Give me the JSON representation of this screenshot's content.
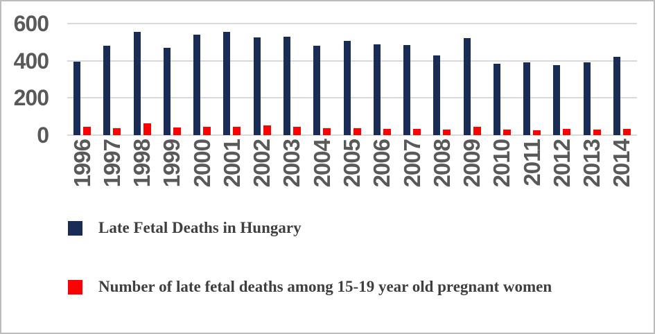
{
  "chart_data": {
    "type": "bar",
    "title": "",
    "xlabel": "",
    "ylabel": "",
    "categories": [
      "1996",
      "1997",
      "1998",
      "1999",
      "2000",
      "2001",
      "2002",
      "2003",
      "2004",
      "2005",
      "2006",
      "2007",
      "2008",
      "2009",
      "2010",
      "2011",
      "2012",
      "2013",
      "2014"
    ],
    "series": [
      {
        "name": "Late Fetal Deaths in Hungary",
        "color": "#182c56",
        "values": [
          397,
          482,
          557,
          470,
          539,
          554,
          524,
          530,
          480,
          506,
          490,
          486,
          430,
          521,
          384,
          392,
          376,
          390,
          421
        ]
      },
      {
        "name": "Number of late fetal deaths among 15-19 year old pregnant women",
        "color": "#fe0000",
        "values": [
          45,
          38,
          62,
          40,
          46,
          46,
          52,
          44,
          38,
          36,
          34,
          34,
          31,
          45,
          29,
          26,
          34,
          29,
          35
        ]
      }
    ],
    "ylim": [
      0,
      600
    ],
    "yticks": [
      0,
      200,
      400,
      600
    ],
    "grid": true,
    "legend_position": "bottom-left"
  },
  "colors": {
    "gridline": "#d9d9d9",
    "axis_text": "#595959",
    "legend_text": "#3f3f3f",
    "frame_border": "#bcbcbc",
    "background": "#ffffff"
  }
}
